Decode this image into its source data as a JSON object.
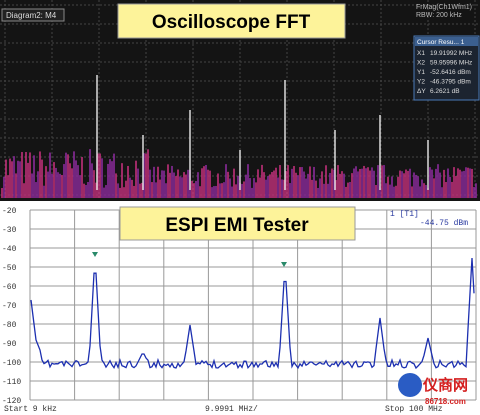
{
  "top_panel": {
    "title": "Oscilloscope FFT",
    "diagram_label": "Diagram2: M4",
    "trace_label": "FrMag(Ch1Wfm1)",
    "rbw": "RBW: 200 kHz",
    "cursor": {
      "header": "Cursor Resu... 1",
      "rows": [
        [
          "X1",
          "19.91992 MHz"
        ],
        [
          "X2",
          "59.95996 MHz"
        ],
        [
          "Y1",
          "-52.6416 dBm"
        ],
        [
          "Y2",
          "-46.3795 dBm"
        ],
        [
          "ΔY",
          "6.2621 dB"
        ]
      ]
    }
  },
  "bottom_panel": {
    "title": "ESPI EMI Tester",
    "marker": "1 [T1]",
    "marker_level": "-44.75 dBm",
    "y_labels": [
      "-20",
      "-30",
      "-40",
      "-50",
      "-60",
      "-70",
      "-80",
      "-90",
      "-100",
      "-110",
      "-120"
    ],
    "start": "Start 9 kHz",
    "span": "9.9991 MHz/",
    "stop": "Stop 100 MHz"
  },
  "watermark": {
    "name": "仪商网",
    "site": "86718.com"
  }
}
